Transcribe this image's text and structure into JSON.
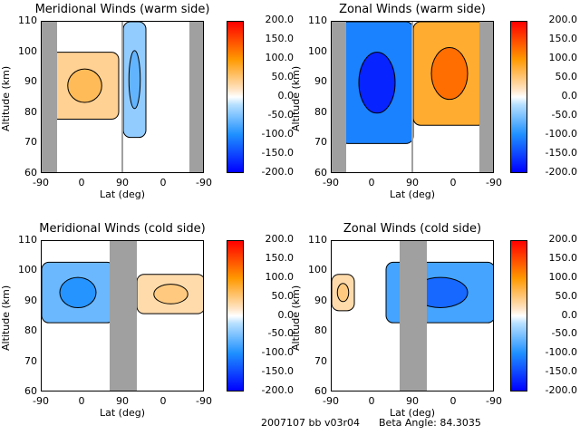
{
  "chart_data": [
    {
      "type": "heatmap",
      "title": "Meridional Winds (warm side)",
      "xlabel": "Lat (deg)",
      "ylabel": "Altitude (km)",
      "x_tick_labels": [
        "-90",
        "0",
        "90",
        "0",
        "-90"
      ],
      "y_tick_labels": [
        "110",
        "100",
        "90",
        "80",
        "70",
        "60"
      ],
      "ylim": [
        60,
        110
      ],
      "colorbar_ticks": [
        "200.0",
        "150.0",
        "100.0",
        "50.0",
        "0.0",
        "-50.0",
        "-100.0",
        "-150.0",
        "-200.0"
      ],
      "clim": [
        -200,
        200
      ],
      "gray_bands": [
        [
          -90,
          -70
        ],
        [
          75,
          90
        ],
        [
          -70,
          -90
        ]
      ],
      "features": [
        {
          "value": 40,
          "lat_range": [
            -70,
            80
          ],
          "alt_range": [
            78,
            100
          ]
        },
        {
          "value": -40,
          "lat_range": [
            90,
            40
          ],
          "alt_range": [
            72,
            110
          ]
        }
      ]
    },
    {
      "type": "heatmap",
      "title": "Zonal Winds (warm side)",
      "xlabel": "Lat (deg)",
      "ylabel": "Altitude (km)",
      "x_tick_labels": [
        "-90",
        "0",
        "90",
        "0",
        "-90"
      ],
      "y_tick_labels": [
        "110",
        "100",
        "90",
        "80",
        "70",
        "60"
      ],
      "ylim": [
        60,
        110
      ],
      "colorbar_ticks": [
        "200.0",
        "150.0",
        "100.0",
        "50.0",
        "0.0",
        "-50.0",
        "-100.0",
        "-150.0",
        "-200.0"
      ],
      "clim": [
        -200,
        200
      ],
      "features": [
        {
          "value": -110,
          "lat_range": [
            -70,
            90
          ],
          "alt_range": [
            70,
            110
          ]
        },
        {
          "value": 80,
          "lat_range": [
            90,
            -70
          ],
          "alt_range": [
            76,
            110
          ]
        }
      ]
    },
    {
      "type": "heatmap",
      "title": "Meridional Winds (cold side)",
      "xlabel": "Lat (deg)",
      "ylabel": "Altitude (km)",
      "x_tick_labels": [
        "-90",
        "0",
        "90",
        "0",
        "-90"
      ],
      "y_tick_labels": [
        "110",
        "100",
        "90",
        "80",
        "70",
        "60"
      ],
      "ylim": [
        60,
        110
      ],
      "colorbar_ticks": [
        "200.0",
        "150.0",
        "100.0",
        "50.0",
        "0.0",
        "-50.0",
        "-100.0",
        "-150.0",
        "-200.0"
      ],
      "clim": [
        -200,
        200
      ],
      "features": [
        {
          "value": -60,
          "lat_range": [
            -90,
            70
          ],
          "alt_range": [
            83,
            103
          ]
        },
        {
          "value": 30,
          "lat_range": [
            20,
            -90
          ],
          "alt_range": [
            86,
            99
          ]
        }
      ]
    },
    {
      "type": "heatmap",
      "title": "Zonal Winds (cold side)",
      "xlabel": "Lat (deg)",
      "ylabel": "Altitude (km)",
      "x_tick_labels": [
        "-90",
        "0",
        "90",
        "0",
        "-90"
      ],
      "y_tick_labels": [
        "110",
        "100",
        "90",
        "80",
        "70",
        "60"
      ],
      "ylim": [
        60,
        110
      ],
      "colorbar_ticks": [
        "200.0",
        "150.0",
        "100.0",
        "50.0",
        "0.0",
        "-50.0",
        "-100.0",
        "-150.0",
        "-200.0"
      ],
      "clim": [
        -200,
        200
      ],
      "features": [
        {
          "value": 30,
          "lat_range": [
            -90,
            -40
          ],
          "alt_range": [
            87,
            99
          ]
        },
        {
          "value": -80,
          "lat_range": [
            110,
            -90
          ],
          "alt_range": [
            83,
            103
          ]
        }
      ]
    }
  ],
  "footer": {
    "id_text": "2007107 bb v03r04",
    "beta_text": "Beta Angle: 84.3035"
  }
}
